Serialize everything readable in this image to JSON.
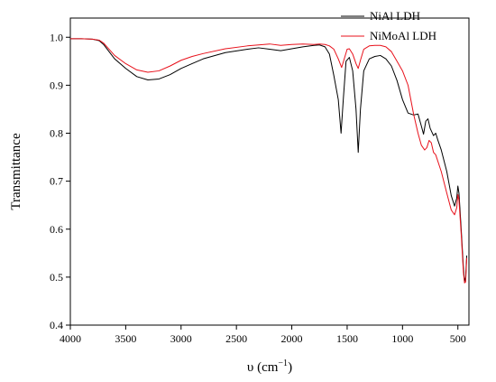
{
  "chart_data": {
    "type": "line",
    "title": "",
    "xlabel": "υ (cm",
    "xlabel_sup": "−1",
    "xlabel_close": ")",
    "ylabel": "Transmittance",
    "xlim": [
      4000,
      400
    ],
    "ylim": [
      0.4,
      1.04
    ],
    "x_reversed": true,
    "x_ticks": [
      4000,
      3500,
      3000,
      2500,
      2000,
      1500,
      1000,
      500
    ],
    "x_tick_labels": [
      "4000",
      "3500",
      "3000",
      "2500",
      "2000",
      "1500",
      "1000",
      "500"
    ],
    "y_ticks": [
      0.4,
      0.5,
      0.6,
      0.7,
      0.8,
      0.9,
      1.0
    ],
    "y_tick_labels": [
      "0.4",
      "0.5",
      "0.6",
      "0.7",
      "0.8",
      "0.9",
      "1.0"
    ],
    "grid": false,
    "legend_position": "top-right",
    "series": [
      {
        "name": "NiAl LDH",
        "color": "#000000",
        "points": [
          [
            4000,
            0.997
          ],
          [
            3900,
            0.997
          ],
          [
            3800,
            0.996
          ],
          [
            3740,
            0.993
          ],
          [
            3700,
            0.985
          ],
          [
            3650,
            0.97
          ],
          [
            3600,
            0.955
          ],
          [
            3500,
            0.935
          ],
          [
            3400,
            0.918
          ],
          [
            3300,
            0.911
          ],
          [
            3200,
            0.913
          ],
          [
            3100,
            0.922
          ],
          [
            3000,
            0.935
          ],
          [
            2900,
            0.945
          ],
          [
            2800,
            0.955
          ],
          [
            2600,
            0.968
          ],
          [
            2400,
            0.975
          ],
          [
            2300,
            0.978
          ],
          [
            2200,
            0.975
          ],
          [
            2100,
            0.972
          ],
          [
            2000,
            0.976
          ],
          [
            1900,
            0.98
          ],
          [
            1800,
            0.983
          ],
          [
            1750,
            0.984
          ],
          [
            1700,
            0.98
          ],
          [
            1660,
            0.965
          ],
          [
            1620,
            0.92
          ],
          [
            1580,
            0.87
          ],
          [
            1555,
            0.8
          ],
          [
            1535,
            0.87
          ],
          [
            1510,
            0.95
          ],
          [
            1480,
            0.958
          ],
          [
            1450,
            0.93
          ],
          [
            1420,
            0.85
          ],
          [
            1400,
            0.76
          ],
          [
            1380,
            0.85
          ],
          [
            1350,
            0.93
          ],
          [
            1300,
            0.955
          ],
          [
            1250,
            0.96
          ],
          [
            1200,
            0.962
          ],
          [
            1150,
            0.955
          ],
          [
            1100,
            0.94
          ],
          [
            1050,
            0.91
          ],
          [
            1000,
            0.87
          ],
          [
            950,
            0.842
          ],
          [
            900,
            0.838
          ],
          [
            860,
            0.84
          ],
          [
            830,
            0.815
          ],
          [
            810,
            0.798
          ],
          [
            790,
            0.825
          ],
          [
            770,
            0.83
          ],
          [
            750,
            0.81
          ],
          [
            720,
            0.795
          ],
          [
            700,
            0.8
          ],
          [
            680,
            0.785
          ],
          [
            650,
            0.765
          ],
          [
            600,
            0.72
          ],
          [
            560,
            0.67
          ],
          [
            530,
            0.648
          ],
          [
            510,
            0.665
          ],
          [
            500,
            0.69
          ],
          [
            490,
            0.675
          ],
          [
            470,
            0.6
          ],
          [
            450,
            0.52
          ],
          [
            440,
            0.49
          ],
          [
            430,
            0.5
          ],
          [
            420,
            0.545
          ]
        ]
      },
      {
        "name": "NiMoAl LDH",
        "color": "#e8111b",
        "points": [
          [
            4000,
            0.997
          ],
          [
            3900,
            0.997
          ],
          [
            3800,
            0.996
          ],
          [
            3740,
            0.994
          ],
          [
            3700,
            0.988
          ],
          [
            3650,
            0.975
          ],
          [
            3600,
            0.962
          ],
          [
            3500,
            0.945
          ],
          [
            3400,
            0.932
          ],
          [
            3300,
            0.927
          ],
          [
            3200,
            0.93
          ],
          [
            3100,
            0.94
          ],
          [
            3000,
            0.952
          ],
          [
            2900,
            0.96
          ],
          [
            2800,
            0.966
          ],
          [
            2600,
            0.976
          ],
          [
            2400,
            0.982
          ],
          [
            2300,
            0.984
          ],
          [
            2200,
            0.986
          ],
          [
            2100,
            0.983
          ],
          [
            2000,
            0.985
          ],
          [
            1900,
            0.986
          ],
          [
            1800,
            0.985
          ],
          [
            1750,
            0.986
          ],
          [
            1700,
            0.985
          ],
          [
            1660,
            0.982
          ],
          [
            1620,
            0.975
          ],
          [
            1580,
            0.955
          ],
          [
            1550,
            0.937
          ],
          [
            1530,
            0.952
          ],
          [
            1500,
            0.975
          ],
          [
            1480,
            0.976
          ],
          [
            1450,
            0.965
          ],
          [
            1420,
            0.945
          ],
          [
            1400,
            0.935
          ],
          [
            1380,
            0.952
          ],
          [
            1350,
            0.975
          ],
          [
            1300,
            0.982
          ],
          [
            1250,
            0.983
          ],
          [
            1200,
            0.983
          ],
          [
            1150,
            0.98
          ],
          [
            1100,
            0.97
          ],
          [
            1050,
            0.95
          ],
          [
            1000,
            0.93
          ],
          [
            950,
            0.9
          ],
          [
            900,
            0.84
          ],
          [
            860,
            0.8
          ],
          [
            830,
            0.775
          ],
          [
            800,
            0.765
          ],
          [
            780,
            0.77
          ],
          [
            760,
            0.785
          ],
          [
            740,
            0.78
          ],
          [
            720,
            0.76
          ],
          [
            700,
            0.755
          ],
          [
            650,
            0.72
          ],
          [
            600,
            0.675
          ],
          [
            560,
            0.64
          ],
          [
            530,
            0.63
          ],
          [
            510,
            0.645
          ],
          [
            500,
            0.672
          ],
          [
            490,
            0.66
          ],
          [
            470,
            0.59
          ],
          [
            450,
            0.51
          ],
          [
            440,
            0.488
          ],
          [
            430,
            0.49
          ],
          [
            420,
            0.54
          ]
        ]
      }
    ]
  }
}
